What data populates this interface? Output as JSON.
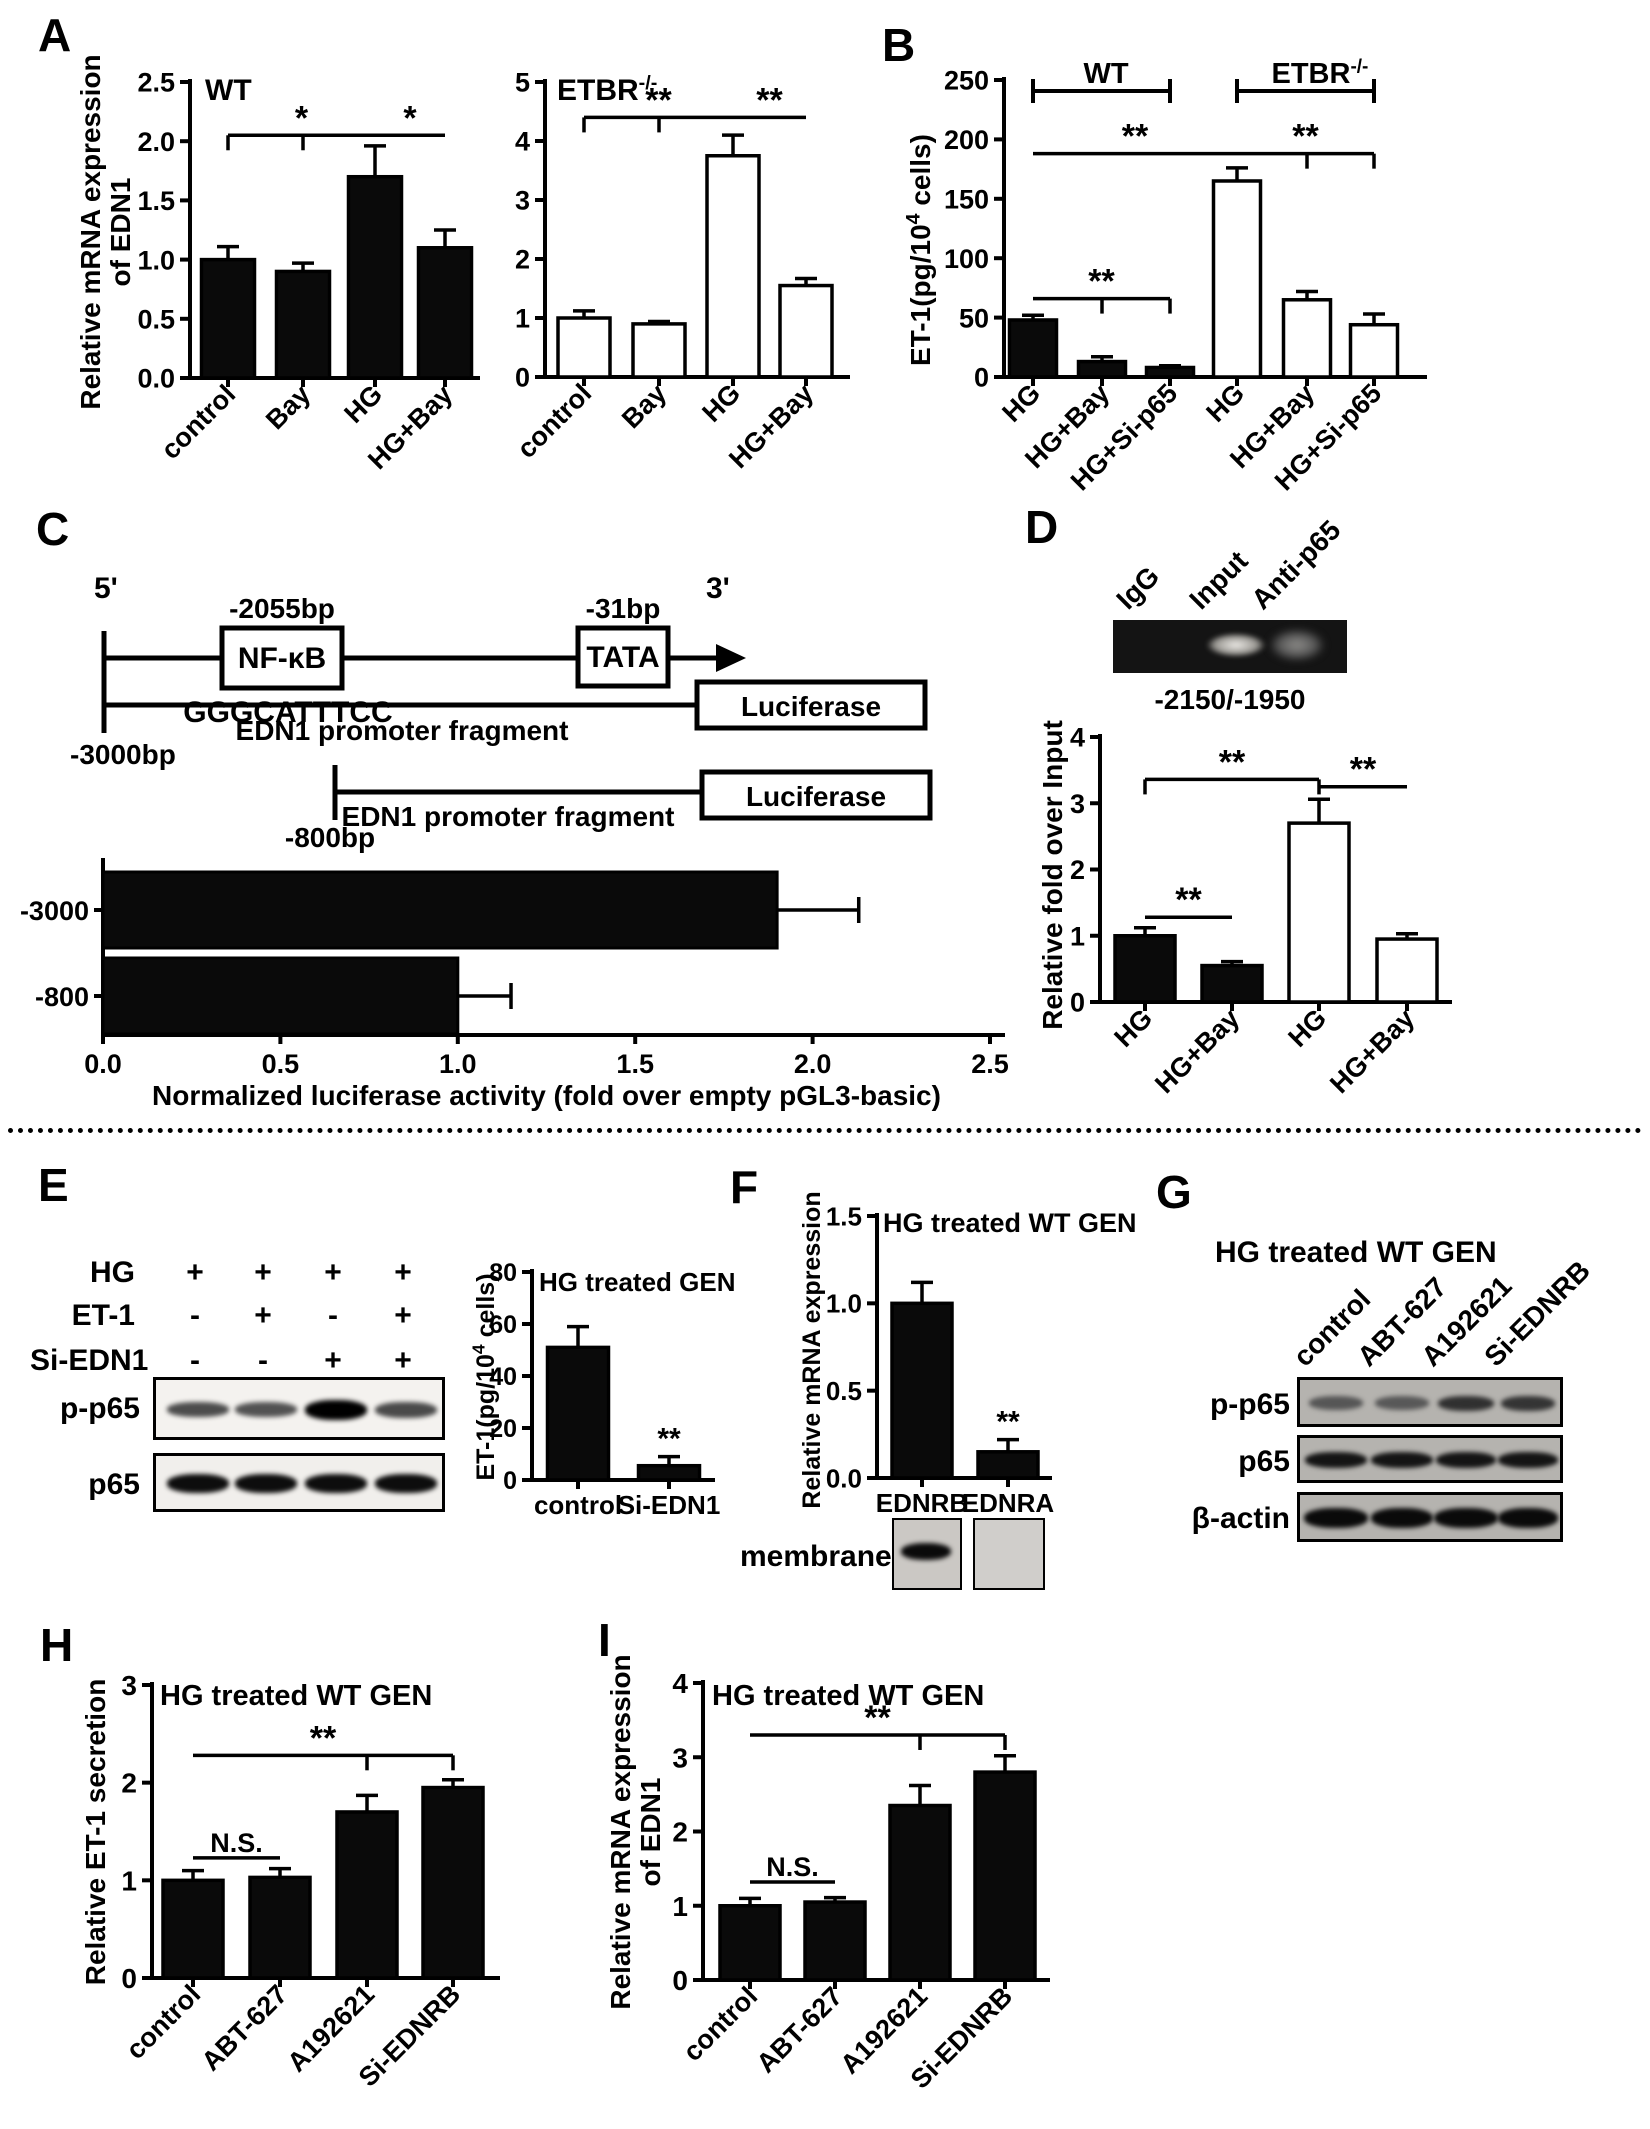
{
  "panels": {
    "A": {
      "letter": "A"
    },
    "B": {
      "letter": "B"
    },
    "C": {
      "letter": "C"
    },
    "D": {
      "letter": "D"
    },
    "E": {
      "letter": "E"
    },
    "F": {
      "letter": "F"
    },
    "G": {
      "letter": "G"
    },
    "H": {
      "letter": "H"
    },
    "I": {
      "letter": "I"
    }
  },
  "chart_data": [
    {
      "id": "a_wt",
      "type": "bar",
      "title": "WT",
      "ylabel_lines": [
        "Relative mRNA expression",
        "of EDN1"
      ],
      "categories": [
        "control",
        "Bay",
        "HG",
        "HG+Bay"
      ],
      "values": [
        1.0,
        0.9,
        1.7,
        1.1
      ],
      "errors": [
        0.11,
        0.07,
        0.26,
        0.15
      ],
      "fills": [
        "black",
        "black",
        "black",
        "black"
      ],
      "ylim": [
        0,
        2.5
      ],
      "yticks": [
        "0.0",
        "0.5",
        "1.0",
        "1.5",
        "2.0",
        "2.5"
      ],
      "sig": [
        {
          "i1": 0,
          "i2": 2,
          "value": 2.05,
          "label": "*",
          "ticks": [
            0,
            1
          ]
        },
        {
          "i1": 2,
          "i2": 3,
          "value": 2.05,
          "label": "*",
          "ticks": []
        }
      ]
    },
    {
      "id": "a_etbr",
      "type": "bar",
      "title": "ETBR",
      "title_sup": "-/-",
      "categories": [
        "control",
        "Bay",
        "HG",
        "HG+Bay"
      ],
      "values": [
        1.0,
        0.9,
        3.75,
        1.55
      ],
      "errors": [
        0.12,
        0.04,
        0.35,
        0.12
      ],
      "fills": [
        "white",
        "white",
        "white",
        "white"
      ],
      "ylim": [
        0,
        5
      ],
      "yticks": [
        "0",
        "1",
        "2",
        "3",
        "4",
        "5"
      ],
      "sig": [
        {
          "i1": 0,
          "i2": 2,
          "value": 4.4,
          "label": "**",
          "ticks": [
            0,
            1
          ]
        },
        {
          "i1": 2,
          "i2": 3,
          "value": 4.4,
          "label": "**",
          "ticks": []
        }
      ]
    },
    {
      "id": "b",
      "type": "bar",
      "ylabel_segments": [
        [
          "ET-1(pg/10",
          false
        ],
        [
          "4",
          true
        ],
        [
          " cells)",
          false
        ]
      ],
      "categories": [
        "HG",
        "HG+Bay",
        "HG+Si-p65",
        "HG",
        "HG+Bay",
        "HG+Si-p65"
      ],
      "values": [
        48,
        13,
        8,
        165,
        65,
        44
      ],
      "errors": [
        4,
        4,
        1.5,
        11,
        7,
        9
      ],
      "fills": [
        "black",
        "black",
        "black",
        "white",
        "white",
        "white"
      ],
      "ylim": [
        0,
        250
      ],
      "yticks": [
        "0",
        "50",
        "100",
        "150",
        "200",
        "250"
      ],
      "groups": [
        {
          "i1": 0,
          "i2": 2,
          "label": "WT",
          "sup": ""
        },
        {
          "i1": 3,
          "i2": 5,
          "label": "ETBR",
          "sup": "-/-"
        }
      ],
      "sig": [
        {
          "i1": 0,
          "i2": 3,
          "value": 188,
          "label": "**",
          "ticks": []
        },
        {
          "i1": 3,
          "i2": 5,
          "value": 188,
          "label": "**",
          "ticks": [
            4,
            5
          ]
        },
        {
          "i1": 0,
          "i2": 2,
          "value": 66,
          "label": "**",
          "ticks": [
            1,
            2
          ]
        }
      ]
    },
    {
      "id": "c_luc",
      "type": "hbar",
      "categories": [
        "-3000",
        "-800"
      ],
      "values": [
        1.9,
        1.0
      ],
      "errors": [
        0.23,
        0.15
      ],
      "xlim": [
        0,
        2.5
      ],
      "xticks": [
        "0.0",
        "0.5",
        "1.0",
        "1.5",
        "2.0",
        "2.5"
      ],
      "xlabel": "Normalized luciferase activity (fold over empty  pGL3-basic)"
    },
    {
      "id": "d",
      "type": "bar",
      "ylabel_lines": [
        "Relative fold over Input"
      ],
      "categories": [
        "HG",
        "HG+Bay",
        "HG",
        "HG+Bay"
      ],
      "values": [
        1.0,
        0.55,
        2.7,
        0.95
      ],
      "errors": [
        0.12,
        0.06,
        0.36,
        0.08
      ],
      "fills": [
        "black",
        "black",
        "white",
        "white"
      ],
      "ylim": [
        0,
        4
      ],
      "yticks": [
        "0",
        "1",
        "2",
        "3",
        "4"
      ],
      "sig": [
        {
          "i1": 0,
          "i2": 1,
          "value": 1.28,
          "label": "**",
          "ticks": []
        },
        {
          "i1": 0,
          "i2": 2,
          "value": 3.36,
          "label": "**",
          "ticks": [
            0,
            2
          ]
        },
        {
          "i1": 2,
          "i2": 3,
          "value": 3.25,
          "label": "**",
          "ticks": []
        }
      ]
    },
    {
      "id": "e",
      "type": "bar",
      "title": "HG treated GEN",
      "ylabel_segments": [
        [
          "ET-1(pg/10",
          false
        ],
        [
          "4",
          true
        ],
        [
          " cells)",
          false
        ]
      ],
      "categories": [
        "control",
        "Si-EDN1"
      ],
      "values": [
        51,
        5.5
      ],
      "errors": [
        8,
        3.5
      ],
      "fills": [
        "black",
        "black"
      ],
      "ylim": [
        0,
        80
      ],
      "yticks": [
        "0",
        "20",
        "40",
        "60",
        "80"
      ],
      "stars": [
        {
          "bar": 1,
          "label": "**"
        }
      ]
    },
    {
      "id": "f",
      "type": "bar",
      "title": "HG treated WT GEN",
      "ylabel_lines": [
        "Relative mRNA expression"
      ],
      "categories": [
        "EDNRB",
        "EDNRA"
      ],
      "values": [
        1.0,
        0.15
      ],
      "errors": [
        0.12,
        0.07
      ],
      "fills": [
        "black",
        "black"
      ],
      "ylim": [
        0,
        1.5
      ],
      "yticks": [
        "0.0",
        "0.5",
        "1.0",
        "1.5"
      ],
      "stars": [
        {
          "bar": 1,
          "label": "**"
        }
      ]
    },
    {
      "id": "h",
      "type": "bar",
      "title": "HG treated WT GEN",
      "ylabel_lines": [
        "Relative ET-1 secretion"
      ],
      "categories": [
        "control",
        "ABT-627",
        "A192621",
        "Si-EDNRB"
      ],
      "values": [
        1.0,
        1.03,
        1.7,
        1.95
      ],
      "errors": [
        0.1,
        0.09,
        0.17,
        0.08
      ],
      "fills": [
        "black",
        "black",
        "black",
        "black"
      ],
      "ylim": [
        0,
        3
      ],
      "yticks": [
        "0",
        "1",
        "2",
        "3"
      ],
      "sig": [
        {
          "i1": 0,
          "i2": 1,
          "value": 1.23,
          "label": "N.S.",
          "ticks": []
        },
        {
          "i1": 0,
          "i2": 3,
          "value": 2.28,
          "label": "**",
          "ticks": [
            2,
            3
          ]
        }
      ]
    },
    {
      "id": "i",
      "type": "bar",
      "title": "HG treated WT GEN",
      "ylabel_lines": [
        "Relative mRNA expression",
        "of EDN1"
      ],
      "categories": [
        "control",
        "ABT-627",
        "A192621",
        "Si-EDNRB"
      ],
      "values": [
        1.0,
        1.05,
        2.35,
        2.8
      ],
      "errors": [
        0.1,
        0.06,
        0.27,
        0.22
      ],
      "fills": [
        "black",
        "black",
        "black",
        "black"
      ],
      "ylim": [
        0,
        4
      ],
      "yticks": [
        "0",
        "1",
        "2",
        "3",
        "4"
      ],
      "sig": [
        {
          "i1": 0,
          "i2": 1,
          "value": 1.32,
          "label": "N.S.",
          "ticks": []
        },
        {
          "i1": 0,
          "i2": 3,
          "value": 3.3,
          "label": "**",
          "ticks": [
            2,
            3
          ]
        }
      ]
    }
  ],
  "diagram_c": {
    "five_prime": "5'",
    "three_prime": "3'",
    "nfkb_pos": "-2055bp",
    "nfkb_label": "NF-κB",
    "nfkb_site": "GGGCATTTCC",
    "tata_pos": "-31bp",
    "tata_label": "TATA",
    "constructs": [
      {
        "start_label": "-3000bp",
        "fragment_label": "EDN1 promoter fragment",
        "reporter": "Luciferase"
      },
      {
        "start_label": "-800bp",
        "fragment_label": "EDN1 promoter fragment",
        "reporter": "Luciferase"
      }
    ]
  },
  "gel_d": {
    "lanes": [
      "IgG",
      "Input",
      "Anti-p65"
    ],
    "region": "-2150/-1950"
  },
  "panel_e": {
    "rows": [
      {
        "name": "HG",
        "marks": [
          "+",
          "+",
          "+",
          "+"
        ]
      },
      {
        "name": "ET-1",
        "marks": [
          "-",
          "+",
          "-",
          "+"
        ]
      },
      {
        "name": "Si-EDN1",
        "marks": [
          "-",
          "-",
          "+",
          "+"
        ]
      }
    ],
    "blots": [
      {
        "label": "p-p65"
      },
      {
        "label": "p65"
      }
    ]
  },
  "panel_f": {
    "membrane_label": "membrane",
    "lanes": [
      "EDNRB",
      "EDNRA"
    ]
  },
  "panel_g": {
    "title": "HG treated WT GEN",
    "lanes": [
      "control",
      "ABT-627",
      "A192621",
      "Si-EDNRB"
    ],
    "blots": [
      {
        "label": "p-p65"
      },
      {
        "label": "p65"
      },
      {
        "label": "β-actin"
      }
    ]
  }
}
